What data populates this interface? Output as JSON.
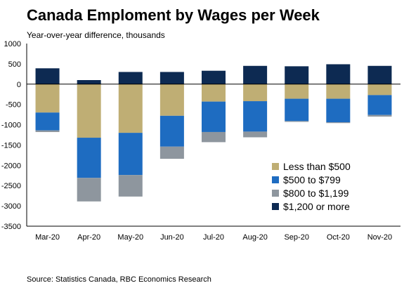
{
  "title": "Canada Emploment by Wages per Week",
  "subtitle": "Year-over-year difference, thousands",
  "source": "Source: Statistics Canada, RBC Economics Research",
  "colors": {
    "Less than $500": "#BFAE74",
    "$500 to $799": "#1E6CC1",
    "$800 to $1,199": "#8E969E",
    "$1,200 or more": "#0D2A52"
  },
  "chart_data": {
    "type": "bar",
    "stacked": true,
    "categories": [
      "Mar-20",
      "Apr-20",
      "May-20",
      "Jun-20",
      "Jul-20",
      "Aug-20",
      "Sep-20",
      "Oct-20",
      "Nov-20"
    ],
    "series": [
      {
        "name": "Less than $500",
        "values": [
          -700,
          -1320,
          -1200,
          -780,
          -430,
          -420,
          -360,
          -360,
          -270
        ]
      },
      {
        "name": "$500 to $799",
        "values": [
          -440,
          -990,
          -1040,
          -760,
          -750,
          -750,
          -550,
          -580,
          -490
        ]
      },
      {
        "name": "$800 to $1,199",
        "values": [
          -40,
          -580,
          -530,
          -300,
          -250,
          -140,
          -20,
          -20,
          -40
        ]
      },
      {
        "name": "$1,200 or more",
        "values": [
          390,
          100,
          300,
          300,
          330,
          450,
          440,
          490,
          450
        ]
      }
    ],
    "ylim": [
      -3500,
      1000
    ],
    "yticks": [
      "1000",
      "500",
      "0",
      "-500",
      "-1000",
      "-1500",
      "-2000",
      "-2500",
      "-3000",
      "-3500"
    ],
    "ytick_values": [
      1000,
      500,
      0,
      -500,
      -1000,
      -1500,
      -2000,
      -2500,
      -3000,
      -3500
    ],
    "legend_position": "lower-right",
    "grid": false
  }
}
